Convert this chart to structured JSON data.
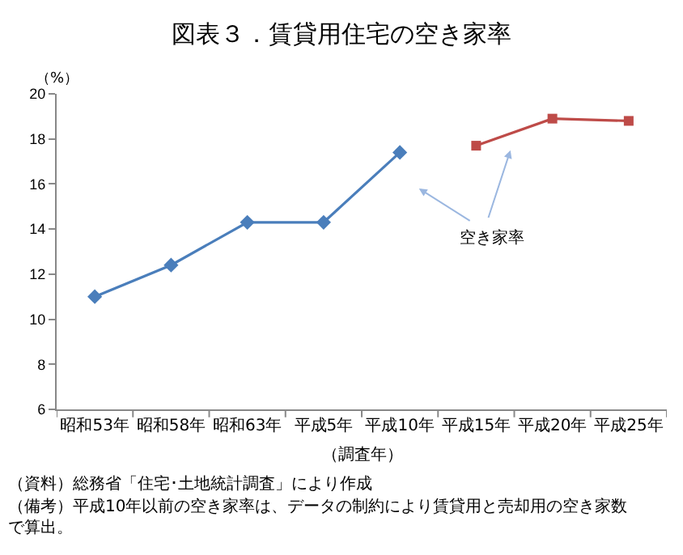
{
  "chart_data": {
    "type": "line",
    "title": "図表３．賃貸用住宅の空き家率",
    "ylabel": "（%）",
    "xlabel": "（調査年）",
    "categories": [
      "昭和53年",
      "昭和58年",
      "昭和63年",
      "平成5年",
      "平成10年",
      "平成15年",
      "平成20年",
      "平成25年"
    ],
    "series": [
      {
        "color": "#4a7ebb",
        "marker": "diamond",
        "values": [
          11.0,
          12.4,
          14.3,
          14.3,
          17.4,
          null,
          null,
          null
        ]
      },
      {
        "color": "#be4b48",
        "marker": "square",
        "values": [
          null,
          null,
          null,
          null,
          null,
          17.7,
          18.9,
          18.8
        ]
      }
    ],
    "ylim": [
      6,
      20
    ],
    "yticks": [
      6,
      8,
      10,
      12,
      14,
      16,
      18,
      20
    ],
    "annotations": [
      "空き家率",
      "（資料）総務省「住宅･土地統計調査」により作成",
      "（備考）平成10年以前の空き家率は、データの制約により賃貸用と売却用の空き家数で算出。"
    ]
  }
}
